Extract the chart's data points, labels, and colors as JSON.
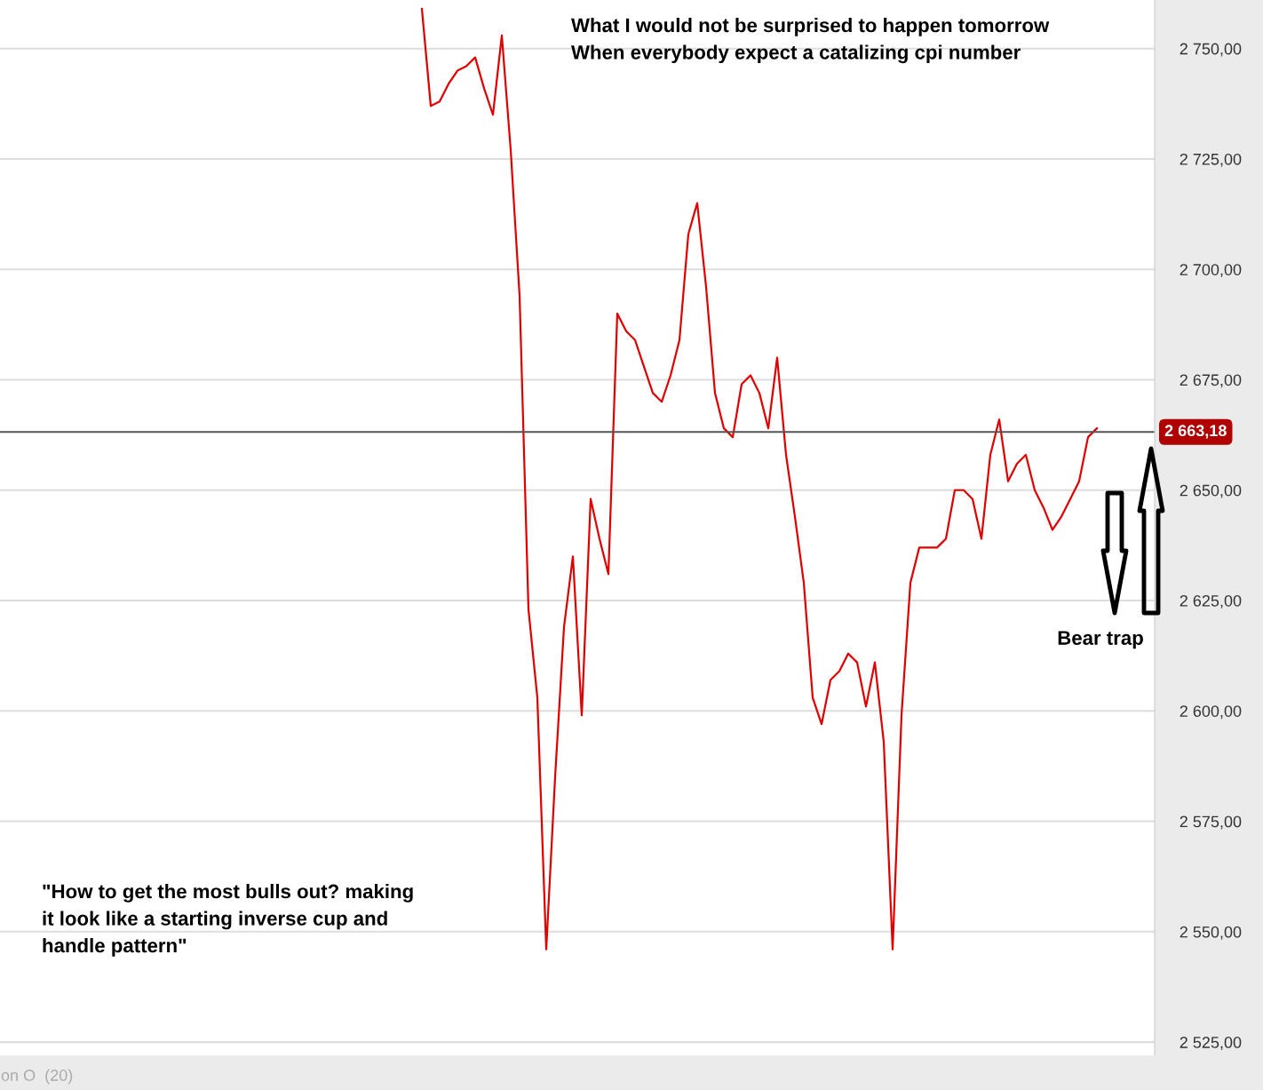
{
  "chart_data": {
    "type": "line",
    "categories": [
      null,
      null,
      null,
      null,
      null,
      null,
      null,
      null,
      null,
      null,
      null,
      null,
      null,
      null,
      null,
      null,
      null,
      null,
      null,
      null,
      null,
      null,
      null,
      null,
      null,
      null,
      null,
      null,
      null,
      null,
      null,
      null,
      null,
      null,
      null,
      null,
      null,
      null,
      null,
      null,
      null,
      null,
      null,
      null,
      null,
      null,
      null,
      null,
      null,
      null,
      null,
      null,
      null,
      null,
      null,
      null,
      null,
      null,
      null,
      null,
      null,
      null,
      null,
      null,
      null,
      null,
      null,
      null,
      null,
      null,
      null,
      null,
      null,
      null,
      null,
      null,
      null,
      null,
      null,
      null,
      null,
      null,
      null,
      null,
      null,
      null,
      null,
      null,
      null,
      null,
      null,
      null,
      null,
      null,
      null,
      null,
      null,
      null,
      null,
      null,
      null,
      null,
      null,
      null,
      null,
      null,
      null,
      null,
      null,
      null,
      null,
      null,
      null,
      null,
      null,
      null,
      null,
      null,
      null,
      null,
      null,
      null,
      null,
      null,
      null,
      null,
      null,
      null,
      null,
      null
    ],
    "series": [
      {
        "color": "#e00000",
        "values": [
          null,
          null,
          null,
          null,
          null,
          null,
          null,
          null,
          null,
          null,
          null,
          null,
          null,
          null,
          null,
          null,
          null,
          null,
          null,
          null,
          null,
          null,
          null,
          null,
          null,
          null,
          null,
          null,
          null,
          null,
          null,
          null,
          null,
          null,
          null,
          null,
          null,
          null,
          null,
          null,
          null,
          null,
          null,
          null,
          null,
          null,
          null,
          2759,
          2737,
          2738,
          2742,
          2745,
          2746,
          2748,
          2741,
          2735,
          2753,
          2727,
          2694,
          2623,
          2603,
          2546,
          2585,
          2619,
          2635,
          2599,
          2648,
          2639,
          2631,
          2690,
          2686,
          2684,
          2678,
          2672,
          2670,
          2676,
          2684,
          2708,
          2715,
          2696,
          2672,
          2664,
          2662,
          2674,
          2676,
          2672,
          2664,
          2680,
          2658,
          2644,
          2629,
          2603,
          2597,
          2607,
          2609,
          2613,
          2611,
          2601,
          2611,
          2593,
          2546,
          2599,
          2629,
          2637,
          2637,
          2637,
          2639,
          2650,
          2650,
          2648,
          2639,
          2658,
          2666,
          2652,
          2656,
          2658,
          2650,
          2646,
          2641,
          2644,
          2648,
          2652,
          2662,
          2664,
          null,
          null,
          null,
          null,
          null,
          null
        ]
      }
    ],
    "ylim": [
      2522,
      2761
    ],
    "yticks": [
      {
        "value": 2525,
        "label": "2 525,00"
      },
      {
        "value": 2550,
        "label": "2 550,00"
      },
      {
        "value": 2575,
        "label": "2 575,00"
      },
      {
        "value": 2600,
        "label": "2 600,00"
      },
      {
        "value": 2625,
        "label": "2 625,00"
      },
      {
        "value": 2650,
        "label": "2 650,00"
      },
      {
        "value": 2675,
        "label": "2 675,00"
      },
      {
        "value": 2700,
        "label": "2 700,00"
      },
      {
        "value": 2725,
        "label": "2 725,00"
      },
      {
        "value": 2750,
        "label": "2 750,00"
      }
    ],
    "tick_labels": "y",
    "grid": "y",
    "marker": "none",
    "line_style": "solid",
    "ref_lines": [
      {
        "axis": "y",
        "value": 2663.18,
        "label": "2 663,18",
        "color": "#555555"
      }
    ],
    "annotations": [
      "What I would not be surprised to happen tomorrow\nWhen everybody expect a catalizing cpi number",
      "\"How to get the most bulls out? making\nit look like a starting inverse cup and\nhandle pattern\"",
      "Bear trap",
      "on O  (20)"
    ]
  }
}
